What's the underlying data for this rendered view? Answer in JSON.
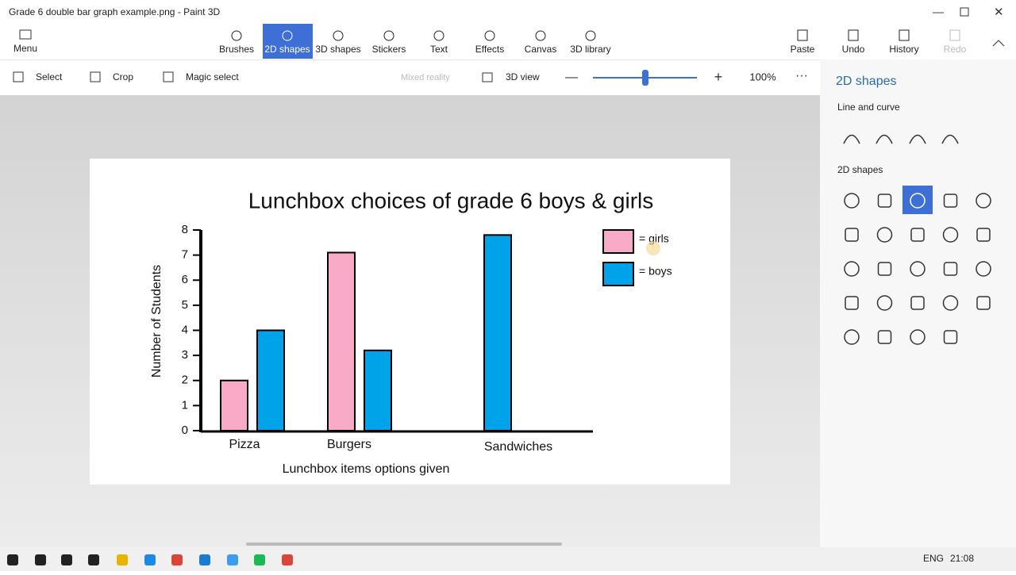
{
  "window": {
    "title": "Grade 6 double bar graph example.png - Paint 3D"
  },
  "toolbar": {
    "menu": "Menu",
    "tabs": [
      "Brushes",
      "2D shapes",
      "3D shapes",
      "Stickers",
      "Text",
      "Effects",
      "Canvas",
      "3D library"
    ],
    "actions": [
      "Paste",
      "Undo",
      "History",
      "Redo"
    ]
  },
  "subtoolbar": {
    "tools": [
      "Select",
      "Crop",
      "Magic select"
    ],
    "mixed_reality": "Mixed reality",
    "view": "3D view",
    "zoom": "100%"
  },
  "panel": {
    "title": "2D shapes",
    "sections": [
      "Line and curve",
      "2D shapes"
    ]
  },
  "taskbar": {
    "language": "ENG",
    "time": "21:08"
  },
  "chart_data": {
    "type": "bar",
    "title": "Lunchbox choices of grade 6 boys & girls",
    "x_label": "Lunchbox items options given",
    "y_label": "Number of Students",
    "categories": [
      "Pizza",
      "Burgers",
      "Sandwiches"
    ],
    "series": [
      {
        "name": "= girls",
        "color": "#f9aac6",
        "values": [
          2,
          7.1,
          null
        ]
      },
      {
        "name": "= boys",
        "color": "#00a2e8",
        "values": [
          4,
          3.2,
          7.8
        ]
      }
    ],
    "ylim": [
      0,
      8
    ],
    "yticks": [
      0,
      1,
      2,
      3,
      4,
      5,
      6,
      7,
      8
    ],
    "grid": false,
    "legend": "top-right"
  }
}
